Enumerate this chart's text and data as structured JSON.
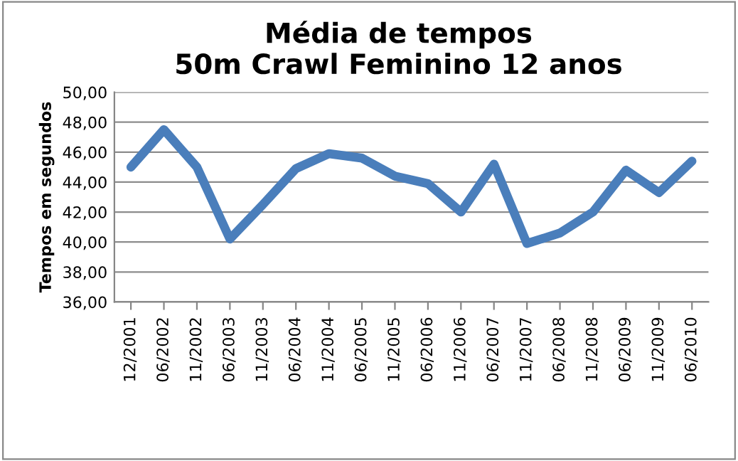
{
  "chart_data": {
    "type": "line",
    "title": "Média de tempos\n50m Crawl Feminino 12 anos",
    "ylabel": "Tempos em segundos",
    "categories": [
      "12/2001",
      "06/2002",
      "11/2002",
      "06/2003",
      "11/2003",
      "06/2004",
      "11/2004",
      "06/2005",
      "11/2005",
      "06/2006",
      "11/2006",
      "06/2007",
      "11/2007",
      "06/2008",
      "11/2008",
      "06/2009",
      "11/2009",
      "06/2010"
    ],
    "series": [
      {
        "color": "#4a7ebb",
        "values": [
          45.0,
          47.5,
          45.0,
          40.2,
          42.5,
          44.9,
          45.9,
          45.6,
          44.4,
          43.9,
          42.0,
          45.2,
          39.9,
          40.6,
          42.0,
          44.8,
          43.3,
          45.4
        ]
      }
    ],
    "ylim": [
      36,
      50
    ],
    "yticks": [
      {
        "value": 36,
        "label": "36,00"
      },
      {
        "value": 38,
        "label": "38,00"
      },
      {
        "value": 40,
        "label": "40,00"
      },
      {
        "value": 42,
        "label": "42,00"
      },
      {
        "value": 44,
        "label": "44,00"
      },
      {
        "value": 46,
        "label": "46,00"
      },
      {
        "value": 48,
        "label": "48,00"
      },
      {
        "value": 50,
        "label": "50,00"
      }
    ],
    "grid": "y",
    "legend": false,
    "marker": "none",
    "line_style": "solid"
  }
}
